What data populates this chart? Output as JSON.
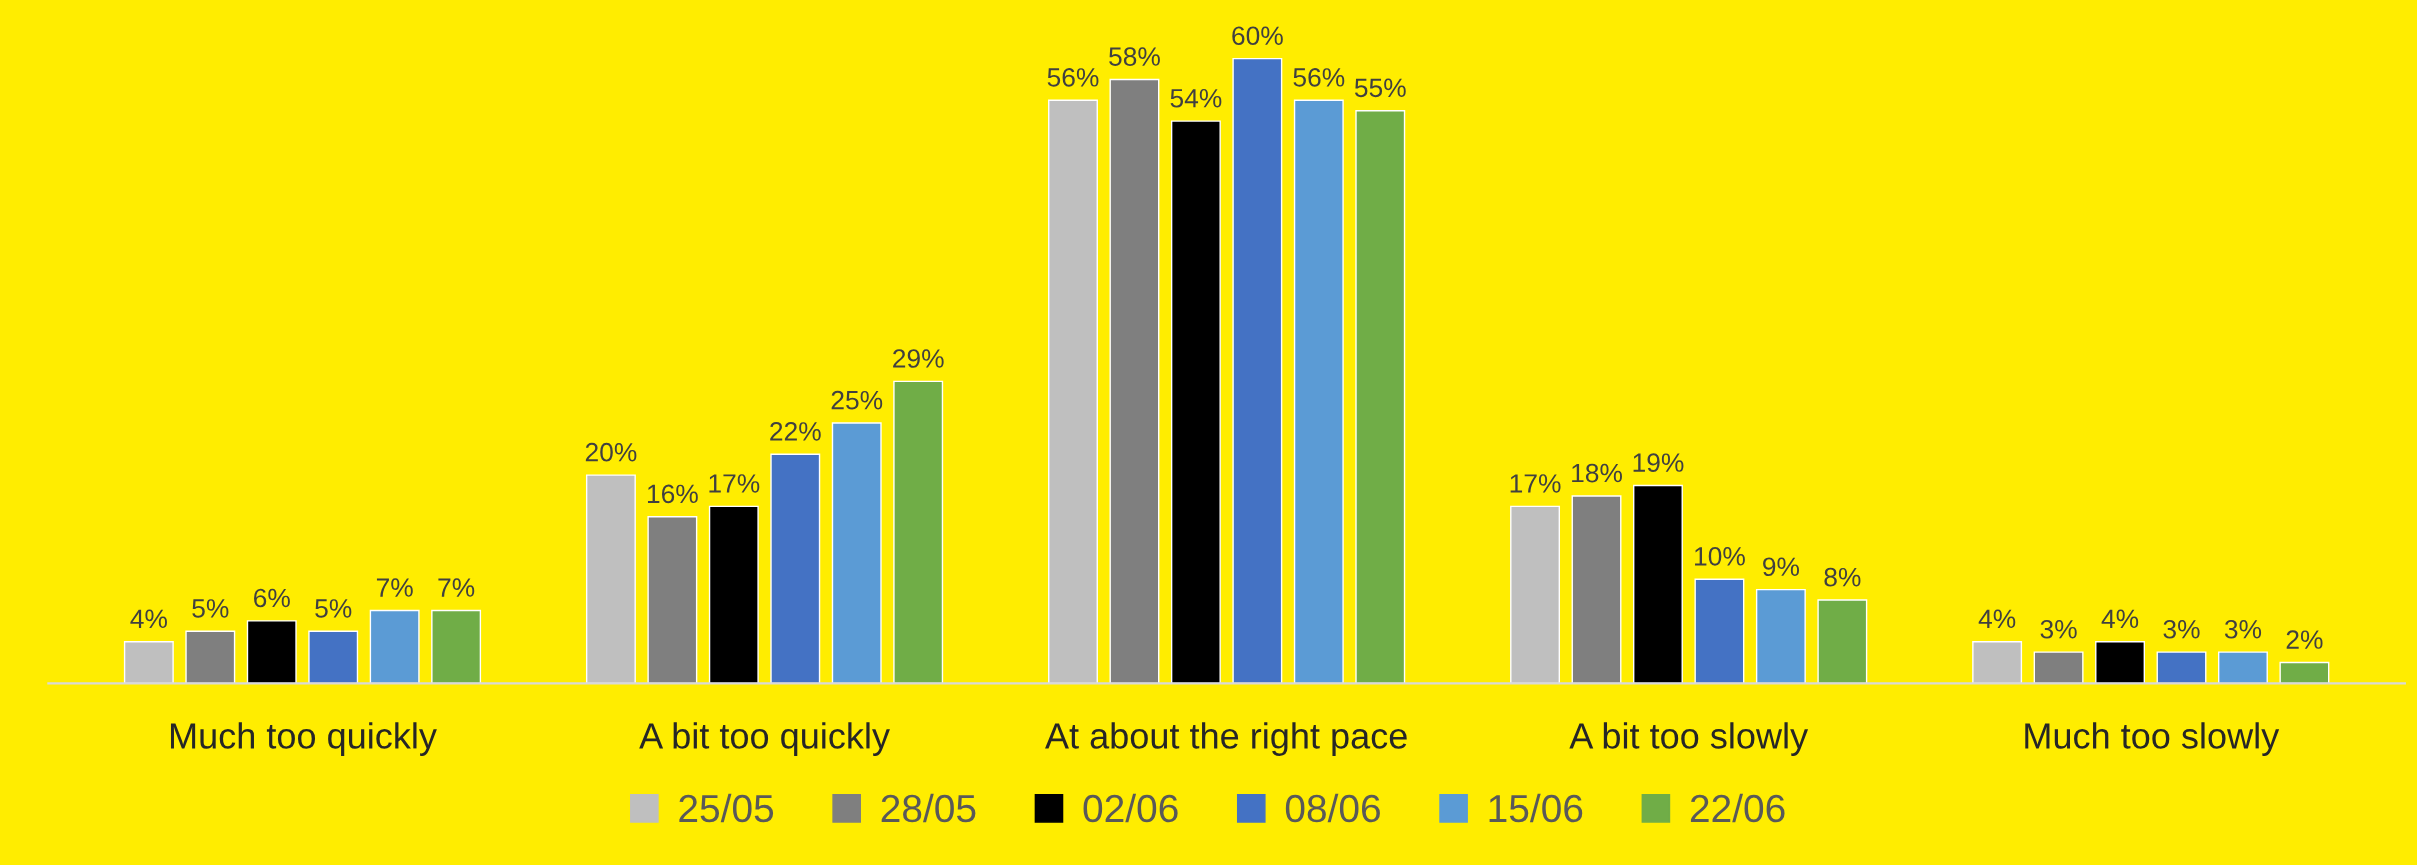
{
  "chart_data": {
    "type": "bar",
    "categories": [
      "Much too quickly",
      "A bit too quickly",
      "At about the right pace",
      "A bit too slowly",
      "Much too slowly"
    ],
    "series": [
      {
        "name": "25/05",
        "color": "#bfbfbf",
        "values": [
          4,
          20,
          56,
          17,
          4
        ],
        "value_labels": [
          "4%",
          "20%",
          "56%",
          "17%",
          "4%"
        ]
      },
      {
        "name": "28/05",
        "color": "#7f7f7f",
        "values": [
          5,
          16,
          58,
          18,
          3
        ],
        "value_labels": [
          "5%",
          "16%",
          "58%",
          "18%",
          "3%"
        ]
      },
      {
        "name": "02/06",
        "color": "#000000",
        "values": [
          6,
          17,
          54,
          19,
          4
        ],
        "value_labels": [
          "6%",
          "17%",
          "54%",
          "19%",
          "4%"
        ]
      },
      {
        "name": "08/06",
        "color": "#4472c4",
        "values": [
          5,
          22,
          60,
          10,
          3
        ],
        "value_labels": [
          "5%",
          "22%",
          "60%",
          "10%",
          "3%"
        ]
      },
      {
        "name": "15/06",
        "color": "#5b9bd5",
        "values": [
          7,
          25,
          56,
          9,
          3
        ],
        "value_labels": [
          "7%",
          "25%",
          "56%",
          "9%",
          "3%"
        ]
      },
      {
        "name": "22/06",
        "color": "#70ad47",
        "values": [
          7,
          29,
          55,
          8,
          2
        ],
        "value_labels": [
          "7%",
          "29%",
          "55%",
          "8%",
          "2%"
        ]
      }
    ],
    "tick_labels": "x",
    "grid": false,
    "legend": "bottom"
  }
}
